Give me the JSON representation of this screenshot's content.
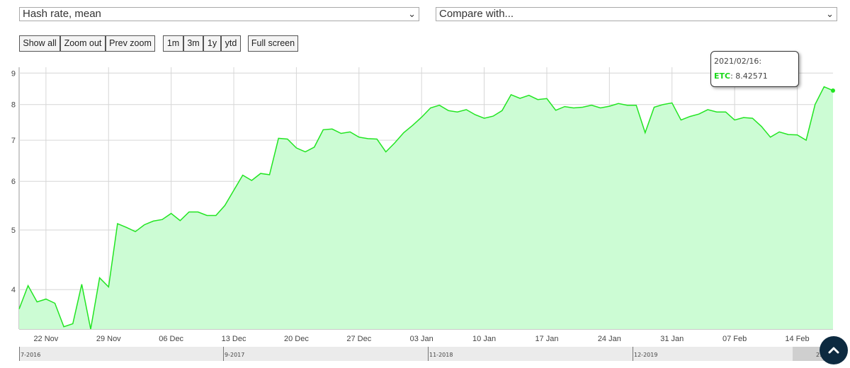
{
  "controls": {
    "metric_select": "Hash rate, mean",
    "compare_select": "Compare with...",
    "buttons": {
      "show_all": "Show all",
      "zoom_out": "Zoom out",
      "prev_zoom": "Prev zoom",
      "m1": "1m",
      "m3": "3m",
      "y1": "1y",
      "ytd": "ytd",
      "full_screen": "Full screen"
    }
  },
  "tooltip": {
    "date": "2021/02/16:",
    "series_name": "ETC",
    "value": ": 8.42571"
  },
  "navigator": {
    "labels": [
      "7-2016",
      "9-2017",
      "11-2018",
      "12-2019",
      "2..."
    ]
  },
  "chart_data": {
    "type": "area",
    "series_name": "ETC",
    "title": "",
    "xlabel": "",
    "ylabel": "",
    "y_scale": "log",
    "ylim": [
      3.45,
      9.2
    ],
    "y_ticks": [
      4,
      5,
      6,
      7,
      8,
      9
    ],
    "x_start": "2020-11-19",
    "x_end": "2021-02-16",
    "x_ticks": [
      {
        "day": 3,
        "label": "22 Nov"
      },
      {
        "day": 10,
        "label": "29 Nov"
      },
      {
        "day": 17,
        "label": "06 Dec"
      },
      {
        "day": 24,
        "label": "13 Dec"
      },
      {
        "day": 31,
        "label": "20 Dec"
      },
      {
        "day": 38,
        "label": "27 Dec"
      },
      {
        "day": 45,
        "label": "03 Jan"
      },
      {
        "day": 52,
        "label": "10 Jan"
      },
      {
        "day": 59,
        "label": "17 Jan"
      },
      {
        "day": 66,
        "label": "24 Jan"
      },
      {
        "day": 73,
        "label": "31 Jan"
      },
      {
        "day": 80,
        "label": "07 Feb"
      },
      {
        "day": 87,
        "label": "14 Feb"
      }
    ],
    "line_color": "#22e522",
    "fill_color": "#ccfcd4",
    "values": [
      3.72,
      4.06,
      3.82,
      3.86,
      3.8,
      3.48,
      3.52,
      4.08,
      3.45,
      4.18,
      4.04,
      5.12,
      5.05,
      4.97,
      5.1,
      5.17,
      5.2,
      5.32,
      5.18,
      5.35,
      5.35,
      5.28,
      5.28,
      5.48,
      5.8,
      6.14,
      6.02,
      6.18,
      6.15,
      7.05,
      7.03,
      6.8,
      6.7,
      6.82,
      7.28,
      7.3,
      7.18,
      7.22,
      7.08,
      7.04,
      7.03,
      6.7,
      6.93,
      7.2,
      7.4,
      7.63,
      7.9,
      7.98,
      7.82,
      7.78,
      7.85,
      7.7,
      7.6,
      7.66,
      7.82,
      8.3,
      8.19,
      8.28,
      8.15,
      8.18,
      7.83,
      7.94,
      7.9,
      7.92,
      7.98,
      7.9,
      7.95,
      8.03,
      7.98,
      7.98,
      7.2,
      7.92,
      8.0,
      8.05,
      7.55,
      7.65,
      7.72,
      7.85,
      7.78,
      7.78,
      7.55,
      7.62,
      7.6,
      7.37,
      7.08,
      7.22,
      7.15,
      7.14,
      7.0,
      8.0,
      8.55,
      8.43
    ]
  }
}
